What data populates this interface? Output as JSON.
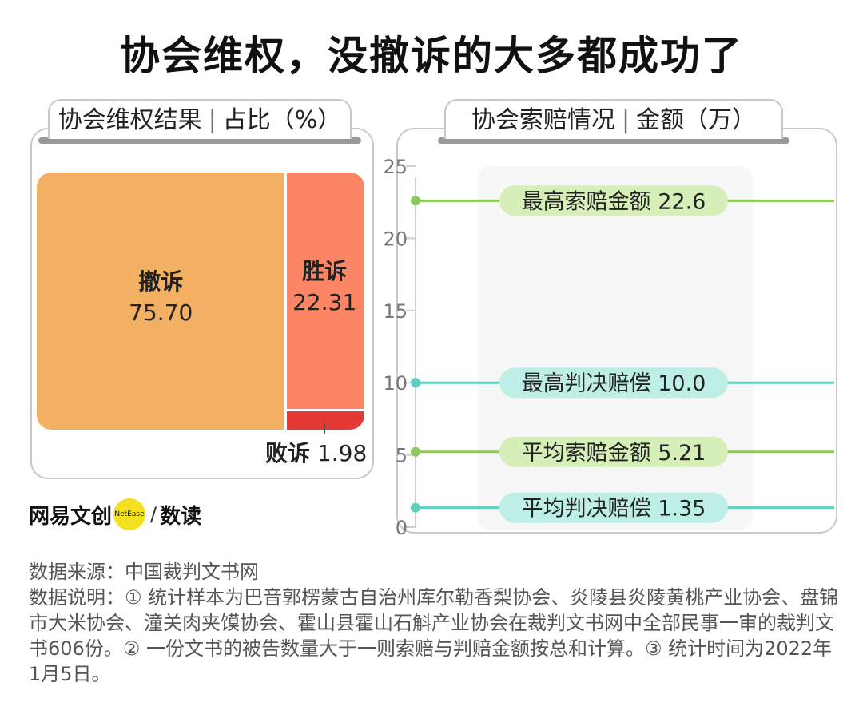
{
  "title": "协会维权，没撤诉的大多都成功了",
  "left_panel": {
    "tab_name": "协会维权结果",
    "tab_unit": "占比（%）"
  },
  "right_panel": {
    "tab_name": "协会索赔情况",
    "tab_unit": "金额（万）"
  },
  "chart_data": [
    {
      "type": "treemap",
      "title": "协会维权结果",
      "unit": "占比（%）",
      "items": [
        {
          "name": "撤诉",
          "value": 75.7,
          "value_text": "75.70",
          "color": "#f3b063"
        },
        {
          "name": "胜诉",
          "value": 22.31,
          "value_text": "22.31",
          "color": "#fc8566"
        },
        {
          "name": "败诉",
          "value": 1.98,
          "value_text": "1.98",
          "color": "#e53935"
        }
      ]
    },
    {
      "type": "dot-line",
      "title": "协会索赔情况",
      "unit": "金额（万）",
      "ylim": [
        0,
        25
      ],
      "yticks": [
        "0",
        "5",
        "10",
        "15",
        "20",
        "25"
      ],
      "series": [
        {
          "name": "最高索赔金额",
          "value": 22.6,
          "value_text": "22.6",
          "color": "#8dc85a",
          "fill": "#d6eeb8"
        },
        {
          "name": "最高判决赔偿",
          "value": 10.0,
          "value_text": "10.0",
          "color": "#5fcfc0",
          "fill": "#bdefe6"
        },
        {
          "name": "平均索赔金额",
          "value": 5.21,
          "value_text": "5.21",
          "color": "#8dc85a",
          "fill": "#d6eeb8"
        },
        {
          "name": "平均判决赔偿",
          "value": 1.35,
          "value_text": "1.35",
          "color": "#5fcfc0",
          "fill": "#bdefe6"
        }
      ]
    }
  ],
  "logo": {
    "brand": "网易文创",
    "badge": "NetEase",
    "slash": "/",
    "sub": "数读"
  },
  "notes": {
    "source": "数据来源：中国裁判文书网",
    "desc": "数据说明：① 统计样本为巴音郭楞蒙古自治州库尔勒香梨协会、炎陵县炎陵黄桃产业协会、盘锦市大米协会、潼关肉夹馍协会、霍山县霍山石斛产业协会在裁判文书网中全部民事一审的裁判文书606份。② 一份文书的被告数量大于一则索赔与判赔金额按总和计算。③ 统计时间为2022年1月5日。"
  }
}
